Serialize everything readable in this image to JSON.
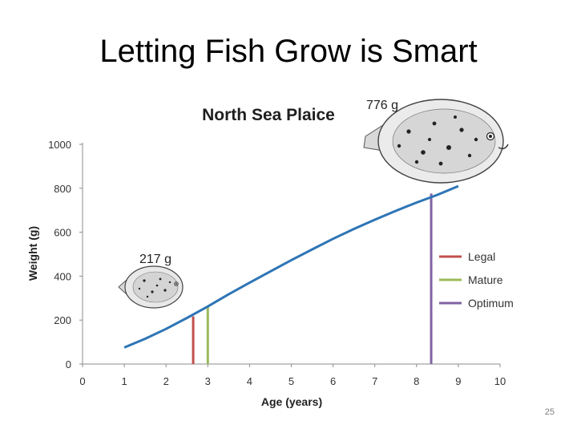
{
  "slide": {
    "title": "Letting Fish Grow is Smart",
    "number": "25"
  },
  "chart_data": {
    "type": "line",
    "title": "North Sea Plaice",
    "xlabel": "Age (years)",
    "ylabel": "Weight (g)",
    "xlim": [
      0,
      10
    ],
    "ylim": [
      0,
      1000
    ],
    "x_ticks": [
      "0",
      "1",
      "2",
      "3",
      "4",
      "5",
      "6",
      "7",
      "8",
      "9",
      "10"
    ],
    "y_ticks": [
      "0",
      "200",
      "400",
      "600",
      "800",
      "1000"
    ],
    "grid": false,
    "series": [
      {
        "color": "#2e75b6",
        "x": [
          1,
          1.5,
          2,
          2.5,
          3,
          3.5,
          4,
          4.5,
          5,
          5.5,
          6,
          6.5,
          7,
          7.5,
          8,
          8.5,
          9
        ],
        "y": [
          75,
          115,
          160,
          210,
          262,
          318,
          370,
          422,
          473,
          522,
          570,
          615,
          657,
          697,
          735,
          770,
          810
        ]
      }
    ],
    "markers": [
      {
        "name": "Legal",
        "x": 2.65,
        "y": 217,
        "color": "#c0504d"
      },
      {
        "name": "Mature",
        "x": 3.0,
        "y": 262,
        "color": "#9bbb59"
      },
      {
        "name": "Optimum",
        "x": 8.35,
        "y": 776,
        "color": "#8064a2"
      }
    ],
    "annotations": [
      {
        "text": "217 g",
        "near": "small-fish"
      },
      {
        "text": "776 g",
        "near": "large-fish"
      }
    ],
    "legend": {
      "placement": "right"
    }
  }
}
